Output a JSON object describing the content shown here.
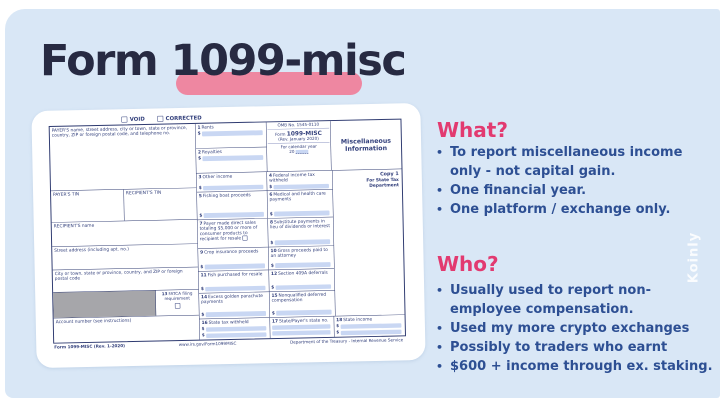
{
  "slide": {
    "title": "Form 1099-misc",
    "watermark": "Koinly",
    "colors": {
      "background": "#d9e7f6",
      "title_navy": "#272a42",
      "highlight_pink": "#ee87a1",
      "heading_pink": "#e23a70",
      "bullet_blue": "#2d4f93",
      "form_ink": "#33407c",
      "form_field": "#c9d7f3"
    }
  },
  "sections": [
    {
      "heading": "What?",
      "bullets": [
        "To report miscellaneous income only - not capital gain.",
        "One financial year.",
        "One platform / exchange only."
      ]
    },
    {
      "heading": "Who?",
      "bullets": [
        "Usually used to report non-employee compensation.",
        "Used my more crypto exchanges",
        "Possibly to traders who earnt",
        "$600 + income through ex. staking."
      ]
    }
  ],
  "form": {
    "dollar": "$",
    "void_label": "VOID",
    "corrected_label": "CORRECTED",
    "payer_block": "PAYER'S name, street address, city or town, state or province, country, ZIP or foreign postal code, and telephone no.",
    "payer_tin": "PAYER'S TIN",
    "recipient_tin": "RECIPIENT'S TIN",
    "recipient_name": "RECIPIENT'S name",
    "street": "Street address (including apt. no.)",
    "city": "City or town, state or province, country, and ZIP or foreign postal code",
    "account": "Account number (see instructions)",
    "omb": "OMB No. 1545-0110",
    "form_word": "Form",
    "form_number": "1099-MISC",
    "revision": "(Rev. January 2020)",
    "calendar_label": "For calendar year",
    "calendar_year": "20",
    "misc_title": "Miscellaneous Information",
    "copy1": "Copy 1",
    "copy_for": "For State Tax Department",
    "boxes": {
      "b1": {
        "n": "1",
        "t": "Rents"
      },
      "b2": {
        "n": "2",
        "t": "Royalties"
      },
      "b3": {
        "n": "3",
        "t": "Other income"
      },
      "b4": {
        "n": "4",
        "t": "Federal income tax withheld"
      },
      "b5": {
        "n": "5",
        "t": "Fishing boat proceeds"
      },
      "b6": {
        "n": "6",
        "t": "Medical and health care payments"
      },
      "b7": {
        "n": "7",
        "t": "Payer made direct sales totaling $5,000 or more of consumer products to recipient for resale"
      },
      "b8": {
        "n": "8",
        "t": "Substitute payments in lieu of dividends or interest"
      },
      "b9": {
        "n": "9",
        "t": "Crop insurance proceeds"
      },
      "b10": {
        "n": "10",
        "t": "Gross proceeds paid to an attorney"
      },
      "b11": {
        "n": "11",
        "t": "Fish purchased for resale"
      },
      "b12": {
        "n": "12",
        "t": "Section 409A deferrals"
      },
      "b13": {
        "n": "13",
        "t": "FATCA filing requirement"
      },
      "b14": {
        "n": "14",
        "t": "Excess golden parachute payments"
      },
      "b15": {
        "n": "15",
        "t": "Nonqualified deferred compensation"
      },
      "b16": {
        "n": "16",
        "t": "State tax withheld"
      },
      "b17": {
        "n": "17",
        "t": "State/Payer's state no."
      },
      "b18": {
        "n": "18",
        "t": "State income"
      }
    },
    "footer": {
      "left": "Form 1099-MISC (Rev. 1-2020)",
      "center": "www.irs.gov/Form1099MISC",
      "right": "Department of the Treasury - Internal Revenue Service"
    }
  }
}
